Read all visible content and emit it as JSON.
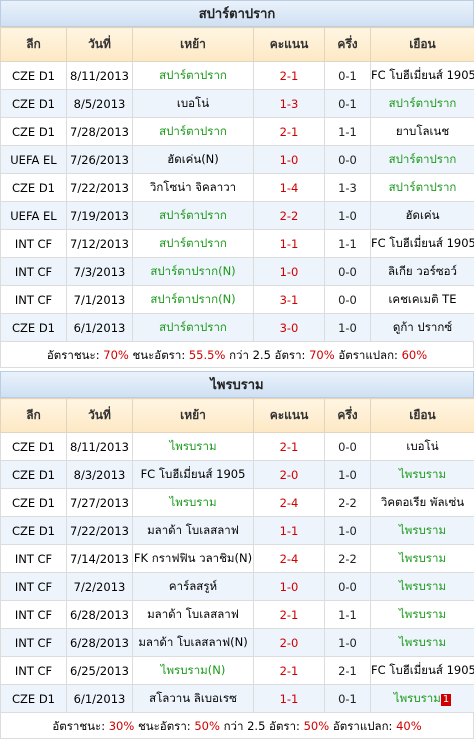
{
  "headers": {
    "league": "ลีก",
    "date": "วันที่",
    "home": "เหย้า",
    "score": "คะแนน",
    "half": "ครึ่ง",
    "away": "เยือน"
  },
  "sections": [
    {
      "title": "สปาร์ตาปราก",
      "rows": [
        {
          "league": "CZE D1",
          "date": "8/11/2013",
          "home": "สปาร์ตาปราก",
          "home_win": true,
          "score": "2-1",
          "half": "0-1",
          "away": "FC โบฮีเมี่ยนส์ 1905",
          "away_win": false
        },
        {
          "league": "CZE D1",
          "date": "8/5/2013",
          "home": "เบอโน่",
          "home_win": false,
          "score": "1-3",
          "half": "0-1",
          "away": "สปาร์ตาปราก",
          "away_win": true
        },
        {
          "league": "CZE D1",
          "date": "7/28/2013",
          "home": "สปาร์ตาปราก",
          "home_win": true,
          "score": "2-1",
          "half": "1-1",
          "away": "ยาบโลเนช",
          "away_win": false
        },
        {
          "league": "UEFA EL",
          "date": "7/26/2013",
          "home": "ฮัดเค่น(N)",
          "home_win": false,
          "score": "1-0",
          "half": "0-0",
          "away": "สปาร์ตาปราก",
          "away_win": true
        },
        {
          "league": "CZE D1",
          "date": "7/22/2013",
          "home": "วิกโซน่า จิคลาวา",
          "home_win": false,
          "score": "1-4",
          "half": "1-3",
          "away": "สปาร์ตาปราก",
          "away_win": true
        },
        {
          "league": "UEFA EL",
          "date": "7/19/2013",
          "home": "สปาร์ตาปราก",
          "home_win": true,
          "score": "2-2",
          "half": "1-0",
          "away": "ฮัดเค่น",
          "away_win": false
        },
        {
          "league": "INT CF",
          "date": "7/12/2013",
          "home": "สปาร์ตาปราก",
          "home_win": true,
          "score": "1-1",
          "half": "1-1",
          "away": "FC โบฮีเมี่ยนส์ 1905",
          "away_win": false
        },
        {
          "league": "INT CF",
          "date": "7/3/2013",
          "home": "สปาร์ตาปราก(N)",
          "home_win": true,
          "score": "1-0",
          "half": "0-0",
          "away": "ลิเกีย วอร์ซอว์",
          "away_win": false
        },
        {
          "league": "INT CF",
          "date": "7/1/2013",
          "home": "สปาร์ตาปราก(N)",
          "home_win": true,
          "score": "3-1",
          "half": "0-0",
          "away": "เคชเคเมติ TE",
          "away_win": false
        },
        {
          "league": "CZE D1",
          "date": "6/1/2013",
          "home": "สปาร์ตาปราก",
          "home_win": true,
          "score": "3-0",
          "half": "1-0",
          "away": "ดูก้า ปรากซ์",
          "away_win": false
        }
      ],
      "summary": {
        "win_label": "อัตราชนะ:",
        "win": "70%",
        "ah_label": "ชนะอัตรา:",
        "ah": "55.5%",
        "over_label": "กว่า 2.5 อัตรา:",
        "over": "70%",
        "odd_label": "อัตราแปลก:",
        "odd": "60%"
      }
    },
    {
      "title": "ไพรบราม",
      "rows": [
        {
          "league": "CZE D1",
          "date": "8/11/2013",
          "home": "ไพรบราม",
          "home_win": true,
          "score": "2-1",
          "half": "0-0",
          "away": "เบอโน่",
          "away_win": false
        },
        {
          "league": "CZE D1",
          "date": "8/3/2013",
          "home": "FC โบฮีเมี่ยนส์ 1905",
          "home_win": false,
          "score": "2-0",
          "half": "1-0",
          "away": "ไพรบราม",
          "away_win": true
        },
        {
          "league": "CZE D1",
          "date": "7/27/2013",
          "home": "ไพรบราม",
          "home_win": true,
          "score": "2-4",
          "half": "2-2",
          "away": "วิคตอเรีย พัลเซ่น",
          "away_win": false
        },
        {
          "league": "CZE D1",
          "date": "7/22/2013",
          "home": "มลาด้า โบเลสลาฟ",
          "home_win": false,
          "score": "1-1",
          "half": "1-0",
          "away": "ไพรบราม",
          "away_win": true
        },
        {
          "league": "INT CF",
          "date": "7/14/2013",
          "home": "FK กราฟฟิน วลาชิม(N)",
          "home_win": false,
          "score": "2-4",
          "half": "2-2",
          "away": "ไพรบราม",
          "away_win": true
        },
        {
          "league": "INT CF",
          "date": "7/2/2013",
          "home": "คาร์ลสรูห์",
          "home_win": false,
          "score": "1-0",
          "half": "0-0",
          "away": "ไพรบราม",
          "away_win": true
        },
        {
          "league": "INT CF",
          "date": "6/28/2013",
          "home": "มลาด้า โบเลสลาฟ",
          "home_win": false,
          "score": "2-1",
          "half": "1-1",
          "away": "ไพรบราม",
          "away_win": true
        },
        {
          "league": "INT CF",
          "date": "6/28/2013",
          "home": "มลาด้า โบเลสลาฟ(N)",
          "home_win": false,
          "score": "2-0",
          "half": "1-0",
          "away": "ไพรบราม",
          "away_win": true
        },
        {
          "league": "INT CF",
          "date": "6/25/2013",
          "home": "ไพรบราม(N)",
          "home_win": true,
          "score": "2-1",
          "half": "2-1",
          "away": "FC โบฮีเมี่ยนส์ 1905",
          "away_win": false
        },
        {
          "league": "CZE D1",
          "date": "6/1/2013",
          "home": "สโลวาน ลิเบอเรซ",
          "home_win": false,
          "score": "1-1",
          "half": "0-1",
          "away": "ไพรบราม",
          "away_win": true,
          "away_badge": "1"
        }
      ],
      "summary": {
        "win_label": "อัตราชนะ:",
        "win": "30%",
        "ah_label": "ชนะอัตรา:",
        "ah": "50%",
        "over_label": "กว่า 2.5 อัตรา:",
        "over": "50%",
        "odd_label": "อัตราแปลก:",
        "odd": "40%"
      }
    }
  ]
}
